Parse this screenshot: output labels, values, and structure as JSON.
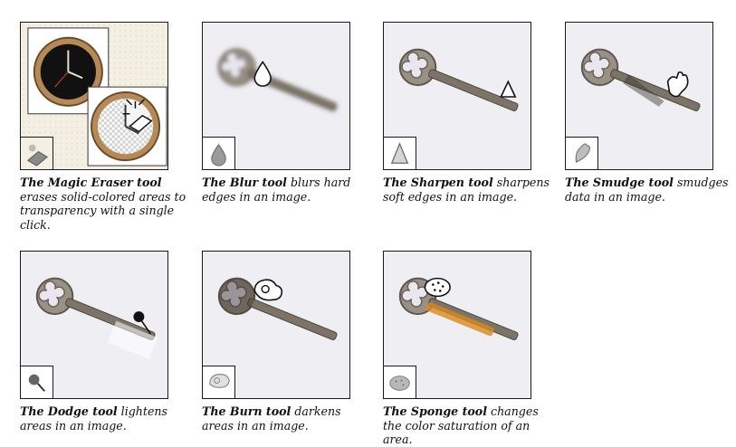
{
  "tools": [
    {
      "id": "magic-eraser",
      "title": "The Magic Eraser tool",
      "desc": "erases solid-colored areas to transparency with a single click.",
      "tool_icon": "magic-eraser-icon"
    },
    {
      "id": "blur",
      "title": "The Blur tool",
      "desc": "blurs hard edges in an image.",
      "tool_icon": "blur-drop-icon"
    },
    {
      "id": "sharpen",
      "title": "The Sharpen tool",
      "desc": "sharpens soft edges in an image.",
      "tool_icon": "sharpen-triangle-icon"
    },
    {
      "id": "smudge",
      "title": "The Smudge tool",
      "desc": "smudges data in an image.",
      "tool_icon": "smudge-finger-icon"
    },
    {
      "id": "dodge",
      "title": "The Dodge tool",
      "desc": "lightens areas in an image.",
      "tool_icon": "dodge-lollipop-icon"
    },
    {
      "id": "burn",
      "title": "The Burn tool",
      "desc": "darkens areas in an image.",
      "tool_icon": "burn-hand-icon"
    },
    {
      "id": "sponge",
      "title": "The Sponge tool",
      "desc": "changes the color saturation of an area.",
      "tool_icon": "sponge-icon"
    }
  ],
  "colors": {
    "border": "#1a1a1a",
    "panel": "#efeef2",
    "key_metal": "#8d857a",
    "sponge_tint": "#d98a1c"
  }
}
